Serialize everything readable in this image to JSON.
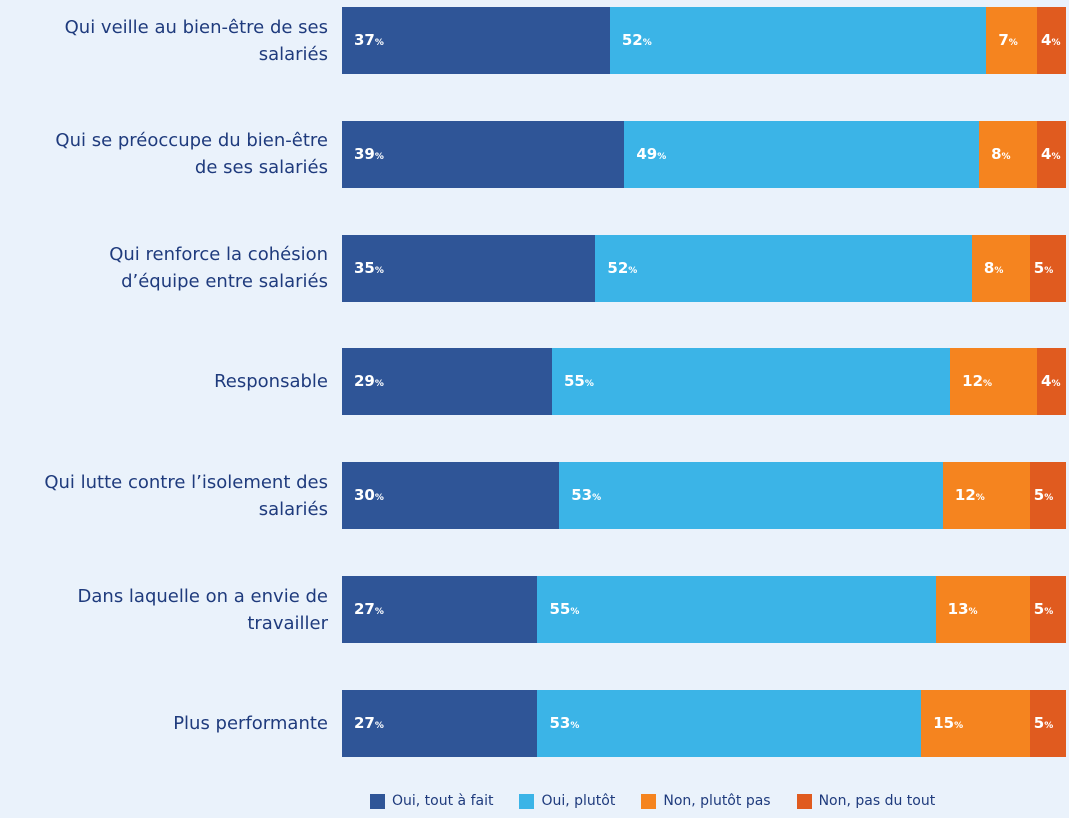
{
  "chart_data": {
    "type": "stacked-bar-horizontal",
    "categories": [
      "Qui veille au bien-être de ses salariés",
      "Qui se préoccupe du bien-être de ses salariés",
      "Qui renforce la cohésion d’équipe entre salariés",
      "Responsable",
      "Qui lutte contre l’isolement des salariés",
      "Dans laquelle on a envie de travailler",
      "Plus performante"
    ],
    "xlim": [
      0,
      100
    ],
    "legend": "bottom",
    "series": [
      {
        "name": "Oui, tout à fait",
        "color": "#2f5597",
        "values": [
          37,
          39,
          35,
          29,
          30,
          27,
          27
        ],
        "value_labels": [
          "37%",
          "39%",
          "35%",
          "29%",
          "30%",
          "27%",
          "27%"
        ]
      },
      {
        "name": "Oui, plutôt",
        "color": "#3bb4e7",
        "values": [
          52,
          49,
          52,
          55,
          53,
          55,
          53
        ],
        "value_labels": [
          "52%",
          "49%",
          "52%",
          "55%",
          "53%",
          "55%",
          "53%"
        ]
      },
      {
        "name": "Non, plutôt pas",
        "color": "#f5841f",
        "values": [
          7,
          8,
          8,
          12,
          12,
          13,
          15
        ],
        "value_labels": [
          "7%",
          "8%",
          "8%",
          "12%",
          "12%",
          "13%",
          "15%"
        ]
      },
      {
        "name": "Non, pas du tout",
        "color": "#e05b1f",
        "values": [
          4,
          4,
          5,
          4,
          5,
          5,
          5
        ],
        "value_labels": [
          "4%",
          "4%",
          "5%",
          "4%",
          "5%",
          "5%",
          "5%"
        ]
      }
    ]
  }
}
